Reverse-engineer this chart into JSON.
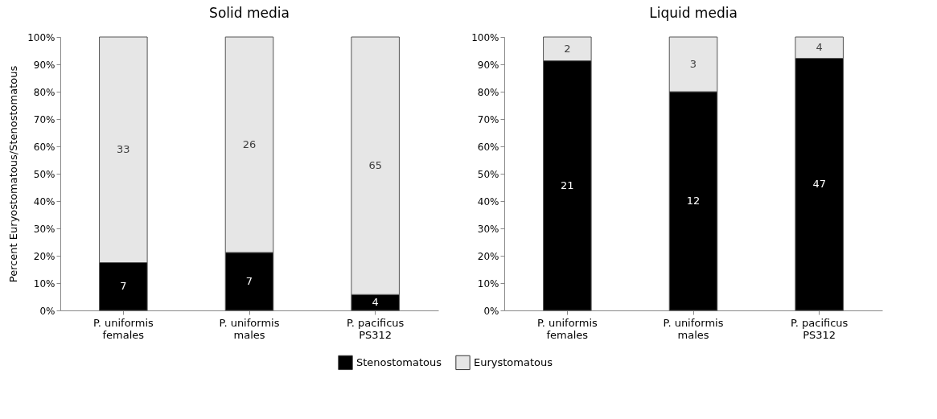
{
  "chart_data": [
    {
      "type": "bar",
      "title": "Solid media",
      "ylabel": "Percent Euryostomatous/Stenostomatous",
      "stacked": true,
      "categories": [
        "P. uniformis\nfemales",
        "P. uniformis\nmales",
        "P. pacificus\nPS312"
      ],
      "series": [
        {
          "name": "Stenostomatous",
          "color": "#000000",
          "values": [
            17.5,
            21.2,
            5.8
          ]
        },
        {
          "name": "Eurystomatous",
          "color": "#e6e6e6",
          "values": [
            82.5,
            78.8,
            94.2
          ]
        }
      ],
      "annotations": [
        "7",
        "7",
        "4",
        "33",
        "26",
        "65"
      ],
      "ylim": [
        0,
        100
      ],
      "yticks": [
        {
          "value": 0,
          "label": "0%"
        },
        {
          "value": 10,
          "label": "10%"
        },
        {
          "value": 20,
          "label": "20%"
        },
        {
          "value": 30,
          "label": "30%"
        },
        {
          "value": 40,
          "label": "40%"
        },
        {
          "value": 50,
          "label": "50%"
        },
        {
          "value": 60,
          "label": "60%"
        },
        {
          "value": 70,
          "label": "70%"
        },
        {
          "value": 80,
          "label": "80%"
        },
        {
          "value": 90,
          "label": "90%"
        },
        {
          "value": 100,
          "label": "100%"
        }
      ],
      "legend": "bottom"
    },
    {
      "type": "bar",
      "title": "Liquid media",
      "stacked": true,
      "categories": [
        "P. uniformis\nfemales",
        "P. uniformis\nmales",
        "P. pacificus\nPS312"
      ],
      "series": [
        {
          "name": "Stenostomatous",
          "color": "#000000",
          "values": [
            91.3,
            80.0,
            92.2
          ]
        },
        {
          "name": "Eurystomatous",
          "color": "#e6e6e6",
          "values": [
            8.7,
            20.0,
            7.8
          ]
        }
      ],
      "annotations": [
        "21",
        "12",
        "47",
        "2",
        "3",
        "4"
      ],
      "ylim": [
        0,
        100
      ],
      "yticks": [
        {
          "value": 0,
          "label": "0%"
        },
        {
          "value": 10,
          "label": "10%"
        },
        {
          "value": 20,
          "label": "20%"
        },
        {
          "value": 30,
          "label": "30%"
        },
        {
          "value": 40,
          "label": "40%"
        },
        {
          "value": 50,
          "label": "50%"
        },
        {
          "value": 60,
          "label": "60%"
        },
        {
          "value": 70,
          "label": "70%"
        },
        {
          "value": 80,
          "label": "80%"
        },
        {
          "value": 90,
          "label": "90%"
        },
        {
          "value": 100,
          "label": "100%"
        }
      ],
      "legend": "bottom"
    }
  ]
}
